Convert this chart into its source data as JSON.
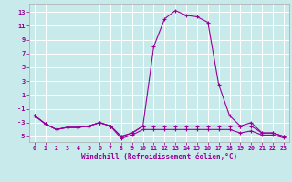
{
  "xlabel": "Windchill (Refroidissement éolien,°C)",
  "background_color": "#c8eaea",
  "line_color": "#990099",
  "grid_color": "#ffffff",
  "spine_color": "#aaaaaa",
  "xlim": [
    -0.5,
    23.5
  ],
  "ylim": [
    -5.8,
    14.2
  ],
  "xticks": [
    0,
    1,
    2,
    3,
    4,
    5,
    6,
    7,
    8,
    9,
    10,
    11,
    12,
    13,
    14,
    15,
    16,
    17,
    18,
    19,
    20,
    21,
    22,
    23
  ],
  "yticks": [
    -5,
    -3,
    -1,
    1,
    3,
    5,
    7,
    9,
    11,
    13
  ],
  "series1": [
    -2.0,
    -3.2,
    -4.0,
    -3.7,
    -3.7,
    -3.5,
    -3.0,
    -3.5,
    -5.0,
    -4.5,
    -3.5,
    8.0,
    12.0,
    13.2,
    12.5,
    12.3,
    11.5,
    2.5,
    -2.0,
    -3.5,
    -3.0,
    -4.5,
    -4.5,
    -5.0
  ],
  "series2": [
    -2.0,
    -3.2,
    -4.0,
    -3.7,
    -3.7,
    -3.5,
    -3.0,
    -3.5,
    -5.0,
    -4.5,
    -3.5,
    -3.5,
    -3.5,
    -3.5,
    -3.5,
    -3.5,
    -3.5,
    -3.5,
    -3.5,
    -3.5,
    -3.5,
    -4.5,
    -4.5,
    -5.0
  ],
  "series3": [
    -2.0,
    -3.2,
    -4.0,
    -3.7,
    -3.7,
    -3.5,
    -3.0,
    -3.5,
    -5.3,
    -4.8,
    -4.0,
    -4.0,
    -4.0,
    -4.0,
    -4.0,
    -4.0,
    -4.0,
    -4.0,
    -4.0,
    -4.5,
    -4.2,
    -4.8,
    -4.8,
    -5.2
  ]
}
